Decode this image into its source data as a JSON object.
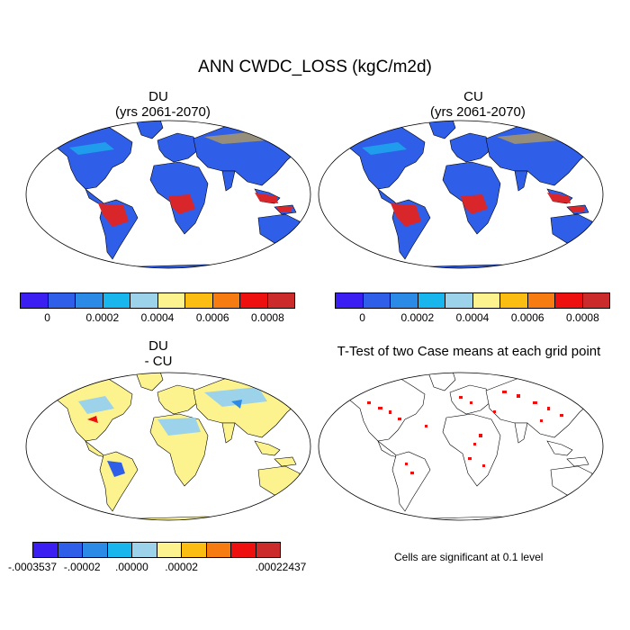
{
  "title": "ANN CWDC_LOSS (kgC/m2d)",
  "panels": {
    "du": {
      "title": "DU",
      "subtitle": "(yrs 2061-2070)"
    },
    "cu": {
      "title": "CU",
      "subtitle": "(yrs 2061-2070)"
    },
    "diff": {
      "title": "DU",
      "subtitle": "- CU"
    },
    "ttest": {
      "title": "T-Test of two Case means at each grid point"
    }
  },
  "colorbar_top": {
    "colors": [
      "#3b1ef2",
      "#2f5ee8",
      "#2a8ae6",
      "#19b6ee",
      "#9dd3ea",
      "#fdf38e",
      "#fbbd12",
      "#f67c12",
      "#ee0f0f",
      "#cc2b2b"
    ],
    "labels": [
      "0",
      "0.0002",
      "0.0004",
      "0.0006",
      "0.0008"
    ]
  },
  "colorbar_diff": {
    "colors": [
      "#3b1ef2",
      "#2f5ee8",
      "#2a8ae6",
      "#19b6ee",
      "#9dd3ea",
      "#fdf38e",
      "#fbbd12",
      "#f67c12",
      "#ee0f0f",
      "#cc2b2b"
    ],
    "labels": [
      "-.0003537",
      "-.00002",
      ".00000",
      ".00002",
      ".00022437"
    ]
  },
  "ttest_note": "Cells are significant at 0.1 level",
  "map_colors": {
    "land_low": "#2f5ee8",
    "high": "#d8262a",
    "mid": "#19b6ee",
    "diff_land": "#fdf38e",
    "diff_light": "#9dd3ea",
    "significant": "#ee0f0f",
    "coast": "#000000"
  }
}
